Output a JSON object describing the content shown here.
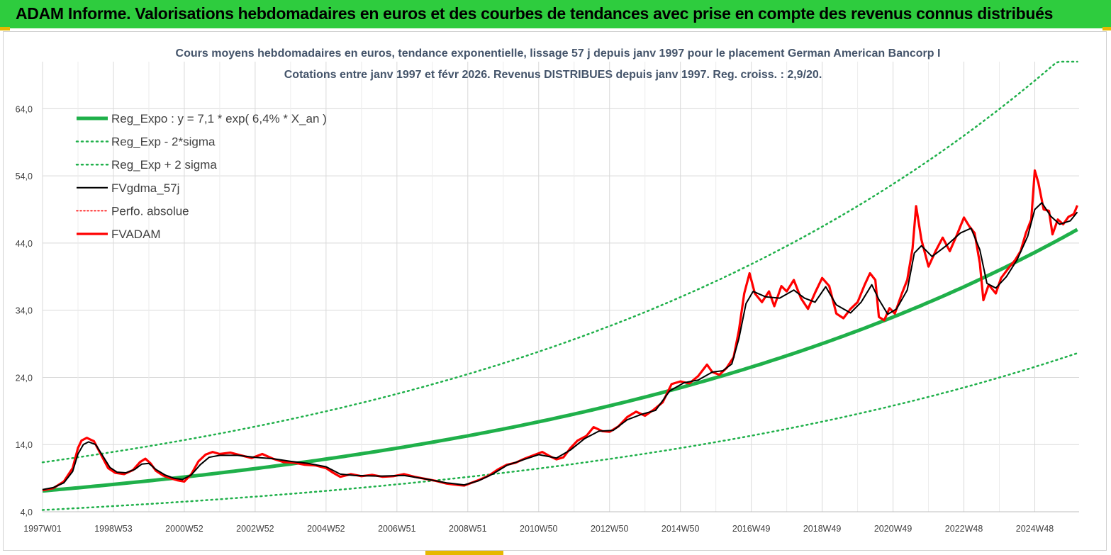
{
  "header": {
    "title": "ADAM Informe. Valorisations hebdomadaires en euros et des courbes de tendances avec prise en compte des revenus connus distribués"
  },
  "colors": {
    "banner": "#2ecc3e",
    "trend": "#1fb04a",
    "fvgdma": "#000000",
    "fvadam": "#ff0000",
    "accent": "#e6b800"
  },
  "chart_data": {
    "type": "line",
    "title_lines": [
      "Cours moyens hebdomadaires en euros, tendance exponentielle, lissage 57 j depuis janv 1997  pour le placement German American Bancorp  I",
      "Cotations entre janv 1997  et  févr  2026.  Revenus DISTRIBUES  depuis janv 1997.  Reg.  croiss. : 2,9/20."
    ],
    "xlabel": "",
    "ylabel": "",
    "ylim": [
      4.0,
      71.0
    ],
    "yticks": [
      "4,0",
      "14,0",
      "24,0",
      "34,0",
      "44,0",
      "54,0",
      "64,0"
    ],
    "ytick_values": [
      4,
      14,
      24,
      34,
      44,
      54,
      64
    ],
    "xticks": [
      "1997W01",
      "1998W53",
      "2000W52",
      "2002W52",
      "2004W52",
      "2006W51",
      "2008W51",
      "2010W50",
      "2012W50",
      "2014W50",
      "2016W49",
      "2018W49",
      "2020W49",
      "2022W48",
      "2024W48"
    ],
    "xtick_years": [
      1997.0,
      1999.0,
      2001.0,
      2003.0,
      2005.0,
      2007.0,
      2009.0,
      2011.0,
      2013.0,
      2015.0,
      2017.0,
      2019.0,
      2021.0,
      2023.0,
      2025.0
    ],
    "xlim": [
      1997.0,
      2026.25
    ],
    "grid": true,
    "legend_position": "top-left",
    "legend": [
      {
        "label": "Reg_Expo : y = 7,1 * exp( 6,4% *  X_an )",
        "style": "solid-thick",
        "color": "#1fb04a"
      },
      {
        "label": "Reg_Exp - 2*sigma",
        "style": "dotted",
        "color": "#1fb04a"
      },
      {
        "label": "Reg_Exp + 2 sigma",
        "style": "dotted",
        "color": "#1fb04a"
      },
      {
        "label": "FVgdma_57j",
        "style": "solid",
        "color": "#000000"
      },
      {
        "label": "Perfo. absolue",
        "style": "dotted",
        "color": "#ff0000"
      },
      {
        "label": "FVADAM",
        "style": "solid-thick",
        "color": "#ff0000"
      }
    ],
    "regression": {
      "a": 7.1,
      "b": 0.064,
      "lower_factor": 0.6,
      "upper_factor": 1.6
    },
    "series": [
      {
        "name": "FVADAM",
        "points": [
          [
            1997.0,
            7.2
          ],
          [
            1997.3,
            7.5
          ],
          [
            1997.6,
            8.5
          ],
          [
            1997.85,
            10.5
          ],
          [
            1998.0,
            13.5
          ],
          [
            1998.1,
            14.6
          ],
          [
            1998.25,
            15.0
          ],
          [
            1998.45,
            14.5
          ],
          [
            1998.65,
            12.5
          ],
          [
            1998.85,
            10.5
          ],
          [
            1999.05,
            9.8
          ],
          [
            1999.3,
            9.6
          ],
          [
            1999.55,
            10.2
          ],
          [
            1999.75,
            11.4
          ],
          [
            1999.9,
            11.9
          ],
          [
            2000.05,
            11.2
          ],
          [
            2000.2,
            10.1
          ],
          [
            2000.4,
            9.4
          ],
          [
            2000.6,
            9.0
          ],
          [
            2000.8,
            8.7
          ],
          [
            2001.0,
            8.5
          ],
          [
            2001.2,
            9.6
          ],
          [
            2001.4,
            11.5
          ],
          [
            2001.6,
            12.5
          ],
          [
            2001.8,
            12.9
          ],
          [
            2002.0,
            12.6
          ],
          [
            2002.3,
            12.8
          ],
          [
            2002.6,
            12.4
          ],
          [
            2002.9,
            12.0
          ],
          [
            2003.2,
            12.6
          ],
          [
            2003.5,
            11.9
          ],
          [
            2003.8,
            11.4
          ],
          [
            2004.1,
            11.3
          ],
          [
            2004.4,
            11.0
          ],
          [
            2004.7,
            10.9
          ],
          [
            2005.0,
            10.5
          ],
          [
            2005.2,
            9.8
          ],
          [
            2005.4,
            9.2
          ],
          [
            2005.7,
            9.6
          ],
          [
            2006.0,
            9.3
          ],
          [
            2006.3,
            9.5
          ],
          [
            2006.6,
            9.2
          ],
          [
            2006.9,
            9.3
          ],
          [
            2007.2,
            9.6
          ],
          [
            2007.5,
            9.2
          ],
          [
            2007.8,
            8.9
          ],
          [
            2008.1,
            8.6
          ],
          [
            2008.4,
            8.2
          ],
          [
            2008.7,
            8.0
          ],
          [
            2008.9,
            7.9
          ],
          [
            2009.1,
            8.3
          ],
          [
            2009.35,
            8.8
          ],
          [
            2009.6,
            9.4
          ],
          [
            2009.85,
            10.3
          ],
          [
            2010.1,
            11.0
          ],
          [
            2010.35,
            11.3
          ],
          [
            2010.6,
            11.9
          ],
          [
            2010.85,
            12.4
          ],
          [
            2011.1,
            12.9
          ],
          [
            2011.3,
            12.3
          ],
          [
            2011.5,
            11.8
          ],
          [
            2011.7,
            12.1
          ],
          [
            2011.9,
            13.5
          ],
          [
            2012.1,
            14.6
          ],
          [
            2012.35,
            15.3
          ],
          [
            2012.55,
            16.6
          ],
          [
            2012.8,
            16.0
          ],
          [
            2013.0,
            15.9
          ],
          [
            2013.25,
            16.7
          ],
          [
            2013.5,
            18.1
          ],
          [
            2013.75,
            18.9
          ],
          [
            2014.0,
            18.3
          ],
          [
            2014.25,
            19.2
          ],
          [
            2014.5,
            20.3
          ],
          [
            2014.75,
            23.0
          ],
          [
            2015.0,
            23.4
          ],
          [
            2015.25,
            23.1
          ],
          [
            2015.5,
            24.2
          ],
          [
            2015.75,
            25.9
          ],
          [
            2015.9,
            24.8
          ],
          [
            2016.1,
            24.4
          ],
          [
            2016.3,
            25.4
          ],
          [
            2016.5,
            27.0
          ],
          [
            2016.65,
            31.0
          ],
          [
            2016.8,
            36.5
          ],
          [
            2016.95,
            39.5
          ],
          [
            2017.1,
            36.5
          ],
          [
            2017.3,
            35.2
          ],
          [
            2017.5,
            36.8
          ],
          [
            2017.65,
            34.6
          ],
          [
            2017.85,
            37.6
          ],
          [
            2018.0,
            36.8
          ],
          [
            2018.2,
            38.5
          ],
          [
            2018.4,
            35.8
          ],
          [
            2018.6,
            34.2
          ],
          [
            2018.8,
            36.6
          ],
          [
            2019.0,
            38.8
          ],
          [
            2019.2,
            37.6
          ],
          [
            2019.4,
            33.5
          ],
          [
            2019.6,
            32.8
          ],
          [
            2019.8,
            34.2
          ],
          [
            2020.0,
            35.2
          ],
          [
            2020.2,
            37.8
          ],
          [
            2020.35,
            39.5
          ],
          [
            2020.5,
            38.5
          ],
          [
            2020.6,
            33.0
          ],
          [
            2020.75,
            32.5
          ],
          [
            2020.9,
            34.3
          ],
          [
            2021.05,
            33.5
          ],
          [
            2021.25,
            36.5
          ],
          [
            2021.4,
            38.5
          ],
          [
            2021.55,
            43.2
          ],
          [
            2021.65,
            49.5
          ],
          [
            2021.8,
            44.5
          ],
          [
            2022.0,
            40.5
          ],
          [
            2022.2,
            42.8
          ],
          [
            2022.4,
            44.8
          ],
          [
            2022.6,
            42.8
          ],
          [
            2022.8,
            45.2
          ],
          [
            2023.0,
            47.8
          ],
          [
            2023.15,
            46.5
          ],
          [
            2023.3,
            45.5
          ],
          [
            2023.45,
            41.0
          ],
          [
            2023.55,
            35.5
          ],
          [
            2023.7,
            37.8
          ],
          [
            2023.9,
            36.5
          ],
          [
            2024.05,
            38.8
          ],
          [
            2024.25,
            40.2
          ],
          [
            2024.45,
            41.5
          ],
          [
            2024.6,
            42.8
          ],
          [
            2024.75,
            45.5
          ],
          [
            2024.9,
            47.5
          ],
          [
            2025.0,
            54.8
          ],
          [
            2025.1,
            53.0
          ],
          [
            2025.25,
            49.0
          ],
          [
            2025.4,
            48.8
          ],
          [
            2025.5,
            45.3
          ],
          [
            2025.65,
            47.5
          ],
          [
            2025.8,
            46.8
          ],
          [
            2025.95,
            47.9
          ],
          [
            2026.1,
            48.3
          ],
          [
            2026.2,
            49.6
          ]
        ]
      },
      {
        "name": "FVgdma_57j",
        "points": [
          [
            1997.0,
            7.3
          ],
          [
            1997.3,
            7.6
          ],
          [
            1997.6,
            8.3
          ],
          [
            1997.85,
            10.0
          ],
          [
            1998.0,
            12.6
          ],
          [
            1998.15,
            14.0
          ],
          [
            1998.3,
            14.4
          ],
          [
            1998.5,
            14.0
          ],
          [
            1998.7,
            12.3
          ],
          [
            1998.9,
            10.6
          ],
          [
            1999.1,
            9.9
          ],
          [
            1999.35,
            9.8
          ],
          [
            1999.6,
            10.3
          ],
          [
            1999.8,
            11.1
          ],
          [
            2000.0,
            11.2
          ],
          [
            2000.2,
            10.3
          ],
          [
            2000.45,
            9.5
          ],
          [
            2000.7,
            9.0
          ],
          [
            2000.95,
            8.8
          ],
          [
            2001.2,
            9.5
          ],
          [
            2001.45,
            11.0
          ],
          [
            2001.7,
            12.1
          ],
          [
            2002.0,
            12.4
          ],
          [
            2002.5,
            12.4
          ],
          [
            2003.0,
            12.1
          ],
          [
            2003.5,
            11.9
          ],
          [
            2004.0,
            11.5
          ],
          [
            2004.5,
            11.2
          ],
          [
            2005.0,
            10.7
          ],
          [
            2005.4,
            9.6
          ],
          [
            2005.8,
            9.4
          ],
          [
            2006.5,
            9.3
          ],
          [
            2007.2,
            9.4
          ],
          [
            2007.8,
            8.9
          ],
          [
            2008.4,
            8.3
          ],
          [
            2008.9,
            8.0
          ],
          [
            2009.3,
            8.6
          ],
          [
            2009.7,
            9.6
          ],
          [
            2010.1,
            10.9
          ],
          [
            2010.6,
            11.8
          ],
          [
            2011.0,
            12.5
          ],
          [
            2011.5,
            12.0
          ],
          [
            2011.9,
            13.2
          ],
          [
            2012.3,
            14.9
          ],
          [
            2012.7,
            16.0
          ],
          [
            2013.1,
            16.1
          ],
          [
            2013.5,
            17.7
          ],
          [
            2013.9,
            18.5
          ],
          [
            2014.3,
            19.1
          ],
          [
            2014.7,
            22.0
          ],
          [
            2015.1,
            23.2
          ],
          [
            2015.5,
            23.6
          ],
          [
            2015.9,
            24.8
          ],
          [
            2016.2,
            25.0
          ],
          [
            2016.45,
            26.0
          ],
          [
            2016.65,
            29.8
          ],
          [
            2016.85,
            35.0
          ],
          [
            2017.05,
            36.8
          ],
          [
            2017.4,
            36.0
          ],
          [
            2017.8,
            35.8
          ],
          [
            2018.2,
            37.0
          ],
          [
            2018.5,
            35.8
          ],
          [
            2018.8,
            35.2
          ],
          [
            2019.1,
            37.5
          ],
          [
            2019.4,
            34.8
          ],
          [
            2019.8,
            33.6
          ],
          [
            2020.1,
            35.2
          ],
          [
            2020.4,
            37.8
          ],
          [
            2020.6,
            35.6
          ],
          [
            2020.85,
            33.4
          ],
          [
            2021.1,
            34.2
          ],
          [
            2021.4,
            37.0
          ],
          [
            2021.6,
            42.5
          ],
          [
            2021.8,
            43.6
          ],
          [
            2022.1,
            42.0
          ],
          [
            2022.5,
            43.6
          ],
          [
            2022.9,
            45.5
          ],
          [
            2023.2,
            46.2
          ],
          [
            2023.45,
            43.0
          ],
          [
            2023.65,
            38.0
          ],
          [
            2023.9,
            37.3
          ],
          [
            2024.2,
            39.0
          ],
          [
            2024.5,
            41.5
          ],
          [
            2024.8,
            45.0
          ],
          [
            2025.0,
            49.0
          ],
          [
            2025.2,
            50.0
          ],
          [
            2025.45,
            48.0
          ],
          [
            2025.7,
            46.8
          ],
          [
            2026.0,
            47.3
          ],
          [
            2026.2,
            48.6
          ]
        ]
      }
    ]
  }
}
